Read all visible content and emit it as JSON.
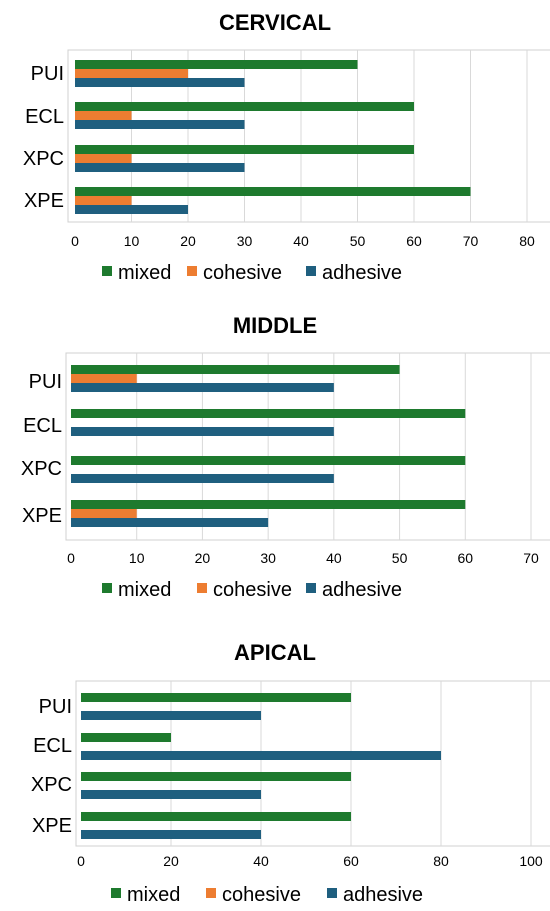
{
  "colors": {
    "mixed": "#1e7a2e",
    "cohesive": "#ed7d31",
    "adhesive": "#1f5f7f"
  },
  "chart_data": [
    {
      "type": "bar",
      "orientation": "horizontal",
      "title": "CERVICAL",
      "categories": [
        "PUI",
        "ECL",
        "XPC",
        "XPE"
      ],
      "series": [
        {
          "name": "mixed",
          "values": [
            50,
            60,
            60,
            70
          ]
        },
        {
          "name": "cohesive",
          "values": [
            20,
            10,
            10,
            10
          ]
        },
        {
          "name": "adhesive",
          "values": [
            30,
            30,
            30,
            20
          ]
        }
      ],
      "xlim": [
        0,
        80
      ],
      "ticks": [
        0,
        10,
        20,
        30,
        40,
        50,
        60,
        70,
        80
      ],
      "grid": true,
      "legend": "bottom"
    },
    {
      "type": "bar",
      "orientation": "horizontal",
      "title": "MIDDLE",
      "categories": [
        "PUI",
        "ECL",
        "XPC",
        "XPE"
      ],
      "series": [
        {
          "name": "mixed",
          "values": [
            50,
            60,
            60,
            60
          ]
        },
        {
          "name": "cohesive",
          "values": [
            10,
            0,
            0,
            10
          ]
        },
        {
          "name": "adhesive",
          "values": [
            40,
            40,
            40,
            30
          ]
        }
      ],
      "xlim": [
        0,
        70
      ],
      "ticks": [
        0,
        10,
        20,
        30,
        40,
        50,
        60,
        70
      ],
      "grid": true,
      "legend": "bottom"
    },
    {
      "type": "bar",
      "orientation": "horizontal",
      "title": "APICAL",
      "categories": [
        "PUI",
        "ECL",
        "XPC",
        "XPE"
      ],
      "series": [
        {
          "name": "mixed",
          "values": [
            60,
            20,
            60,
            60
          ]
        },
        {
          "name": "cohesive",
          "values": [
            0,
            0,
            0,
            0
          ]
        },
        {
          "name": "adhesive",
          "values": [
            40,
            80,
            40,
            40
          ]
        }
      ],
      "xlim": [
        0,
        100
      ],
      "ticks": [
        0,
        20,
        40,
        60,
        80,
        100
      ],
      "grid": true,
      "legend": "bottom"
    }
  ]
}
